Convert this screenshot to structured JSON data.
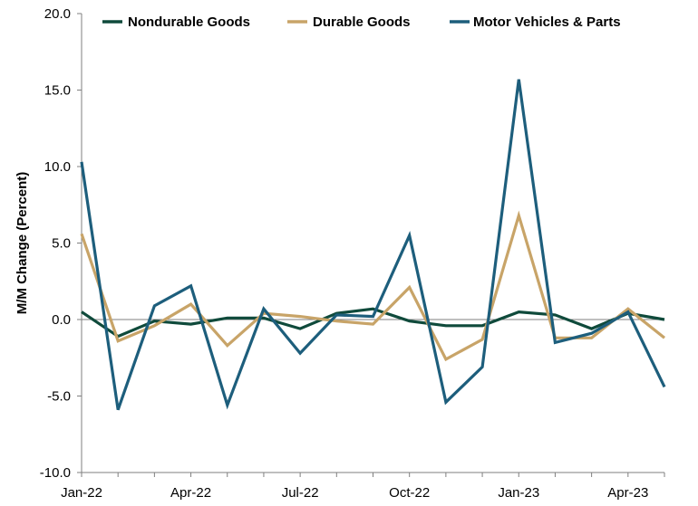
{
  "chart_data": {
    "type": "line",
    "title": "",
    "xlabel": "",
    "ylabel": "M/M Change (Percent)",
    "ylim": [
      -10,
      20
    ],
    "yticks": [
      "20.0",
      "15.0",
      "10.0",
      "5.0",
      "0.0",
      "-5.0",
      "-10.0"
    ],
    "ytick_values": [
      20,
      15,
      10,
      5,
      0,
      -5,
      -10
    ],
    "x": [
      "Jan-22",
      "Feb-22",
      "Mar-22",
      "Apr-22",
      "May-22",
      "Jun-22",
      "Jul-22",
      "Aug-22",
      "Sep-22",
      "Oct-22",
      "Nov-22",
      "Dec-22",
      "Jan-23",
      "Feb-23",
      "Mar-23",
      "Apr-23",
      "May-23"
    ],
    "xtick_labels": [
      "Jan-22",
      "Apr-22",
      "Jul-22",
      "Oct-22",
      "Jan-23",
      "Apr-23"
    ],
    "xtick_indices": [
      0,
      3,
      6,
      9,
      12,
      15
    ],
    "grid": false,
    "legend_position": "top",
    "series": [
      {
        "name": "Nondurable Goods",
        "color": "#0f4a3b",
        "values": [
          0.5,
          -1.1,
          -0.1,
          -0.3,
          0.1,
          0.1,
          -0.6,
          0.4,
          0.7,
          -0.1,
          -0.4,
          -0.4,
          0.5,
          0.3,
          -0.6,
          0.4,
          0.0
        ]
      },
      {
        "name": "Durable Goods",
        "color": "#c8a468",
        "values": [
          5.6,
          -1.4,
          -0.4,
          1.0,
          -1.7,
          0.4,
          0.2,
          -0.1,
          -0.3,
          2.1,
          -2.6,
          -1.3,
          6.8,
          -1.2,
          -1.2,
          0.7,
          -1.2
        ]
      },
      {
        "name": "Motor Vehicles & Parts",
        "color": "#1d5e7c",
        "values": [
          10.3,
          -5.9,
          0.9,
          2.2,
          -5.6,
          0.7,
          -2.2,
          0.3,
          0.2,
          5.5,
          -5.4,
          -3.1,
          15.7,
          -1.5,
          -0.9,
          0.5,
          -4.4
        ]
      }
    ]
  }
}
